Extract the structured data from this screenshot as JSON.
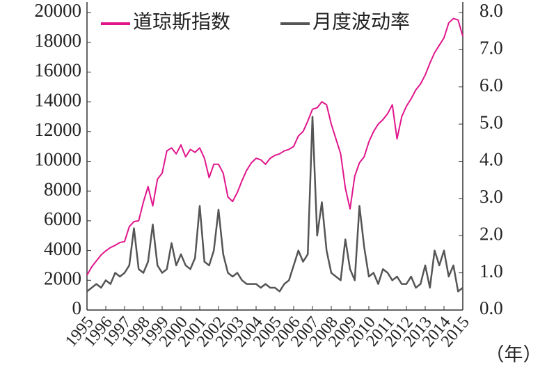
{
  "chart_data": {
    "type": "line",
    "x_label": "（年）",
    "x": [
      1995,
      1995.25,
      1995.5,
      1995.75,
      1996,
      1996.25,
      1996.5,
      1996.75,
      1997,
      1997.25,
      1997.5,
      1997.75,
      1998,
      1998.25,
      1998.5,
      1998.75,
      1999,
      1999.25,
      1999.5,
      1999.75,
      2000,
      2000.25,
      2000.5,
      2000.75,
      2001,
      2001.25,
      2001.5,
      2001.75,
      2002,
      2002.25,
      2002.5,
      2002.75,
      2003,
      2003.25,
      2003.5,
      2003.75,
      2004,
      2004.25,
      2004.5,
      2004.75,
      2005,
      2005.25,
      2005.5,
      2005.75,
      2006,
      2006.25,
      2006.5,
      2006.75,
      2007,
      2007.25,
      2007.5,
      2007.75,
      2008,
      2008.25,
      2008.5,
      2008.75,
      2009,
      2009.25,
      2009.5,
      2009.75,
      2010,
      2010.25,
      2010.5,
      2010.75,
      2011,
      2011.25,
      2011.5,
      2011.75,
      2012,
      2012.25,
      2012.5,
      2012.75,
      2013,
      2013.25,
      2013.5,
      2013.75,
      2014,
      2014.25,
      2014.5,
      2014.75,
      2015
    ],
    "series": [
      {
        "name": "道琼斯指数",
        "color": "#e0158c",
        "values": [
          2340,
          2900,
          3300,
          3700,
          3980,
          4200,
          4350,
          4540,
          4600,
          5600,
          5950,
          6000,
          7250,
          8300,
          7000,
          8800,
          9200,
          10700,
          10900,
          10500,
          11100,
          10300,
          10800,
          10600,
          10900,
          10200,
          8900,
          9800,
          9800,
          9200,
          7600,
          7300,
          7900,
          8700,
          9400,
          9900,
          10200,
          10100,
          9800,
          10200,
          10400,
          10500,
          10700,
          10800,
          11000,
          11700,
          12000,
          12700,
          13500,
          13600,
          14000,
          13800,
          12500,
          11500,
          10500,
          8200,
          6800,
          9000,
          9900,
          10300,
          11300,
          12000,
          12500,
          12800,
          13200,
          13800,
          11500,
          13000,
          13700,
          14200,
          14800,
          15200,
          15800,
          16600,
          17300,
          17800,
          18300,
          19300,
          19600,
          19500,
          18400
        ]
      },
      {
        "name": "月度波动率",
        "color": "#555555",
        "axis": "y2",
        "values": [
          0.5,
          0.6,
          0.7,
          0.6,
          0.8,
          0.7,
          1.0,
          0.9,
          1.0,
          1.2,
          2.2,
          1.1,
          1.0,
          1.3,
          2.3,
          1.2,
          1.0,
          1.1,
          1.8,
          1.2,
          1.5,
          1.2,
          1.1,
          1.4,
          2.8,
          1.3,
          1.2,
          1.6,
          2.7,
          1.5,
          1.0,
          0.9,
          1.0,
          0.8,
          0.7,
          0.7,
          0.7,
          0.6,
          0.7,
          0.6,
          0.6,
          0.5,
          0.7,
          0.8,
          1.2,
          1.6,
          1.3,
          1.5,
          5.2,
          2.0,
          2.9,
          1.6,
          1.0,
          0.9,
          0.8,
          1.9,
          1.1,
          0.8,
          2.8,
          1.7,
          0.9,
          1.0,
          0.7,
          1.1,
          1.0,
          0.8,
          0.9,
          0.7,
          0.7,
          0.9,
          0.6,
          0.7,
          1.2,
          0.6,
          1.6,
          1.2,
          1.6,
          0.9,
          1.2,
          0.5,
          0.6
        ]
      }
    ],
    "xlim": [
      1995,
      2015
    ],
    "xticks": [
      1995,
      1996,
      1997,
      1998,
      1999,
      2000,
      2001,
      2002,
      2003,
      2004,
      2005,
      2006,
      2007,
      2008,
      2009,
      2010,
      2011,
      2012,
      2013,
      2014,
      2015
    ],
    "ylim": [
      0,
      20000
    ],
    "yticks": [
      0,
      2000,
      4000,
      6000,
      8000,
      10000,
      12000,
      14000,
      16000,
      18000,
      20000
    ],
    "y2lim": [
      0,
      8
    ],
    "y2ticks": [
      {
        "value": 0,
        "label": "0.0"
      },
      {
        "value": 1,
        "label": "1.0"
      },
      {
        "value": 2,
        "label": "2.0"
      },
      {
        "value": 3,
        "label": "3.0"
      },
      {
        "value": 4,
        "label": "4.0"
      },
      {
        "value": 5,
        "label": "5.0"
      },
      {
        "value": 6,
        "label": "6.0"
      },
      {
        "value": 7,
        "label": "7.0"
      },
      {
        "value": 8,
        "label": "8.0"
      }
    ],
    "legend": "top"
  }
}
